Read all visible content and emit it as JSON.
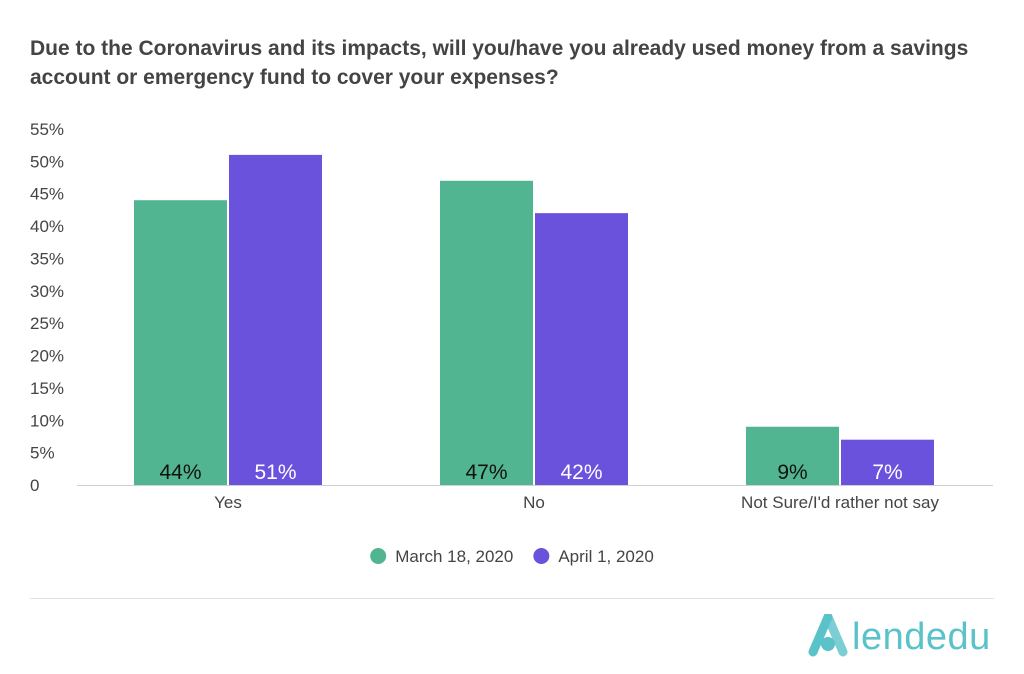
{
  "chart_data": {
    "type": "bar",
    "title": "Due to the Coronavirus and its impacts, will you/have you already used money from a savings account or emergency fund to cover your expenses?",
    "categories": [
      "Yes",
      "No",
      "Not Sure/I'd rather not say"
    ],
    "series": [
      {
        "name": "March 18, 2020",
        "values": [
          44,
          47,
          9
        ],
        "labels": [
          "44%",
          "47%",
          "9%"
        ],
        "color": "#52b592"
      },
      {
        "name": "April 1, 2020",
        "values": [
          51,
          42,
          7
        ],
        "labels": [
          "51%",
          "42%",
          "7%"
        ],
        "color": "#6a52dd"
      }
    ],
    "y_ticks": [
      "0",
      "5%",
      "10%",
      "15%",
      "20%",
      "25%",
      "30%",
      "35%",
      "40%",
      "45%",
      "50%",
      "55%"
    ],
    "ylim": [
      0,
      55
    ],
    "grid": false,
    "legend_position": "bottom-center"
  },
  "branding": {
    "logo_text": "lendedu",
    "logo_color": "#5ac2c9",
    "logo_icon": "lendedu-a-icon"
  }
}
